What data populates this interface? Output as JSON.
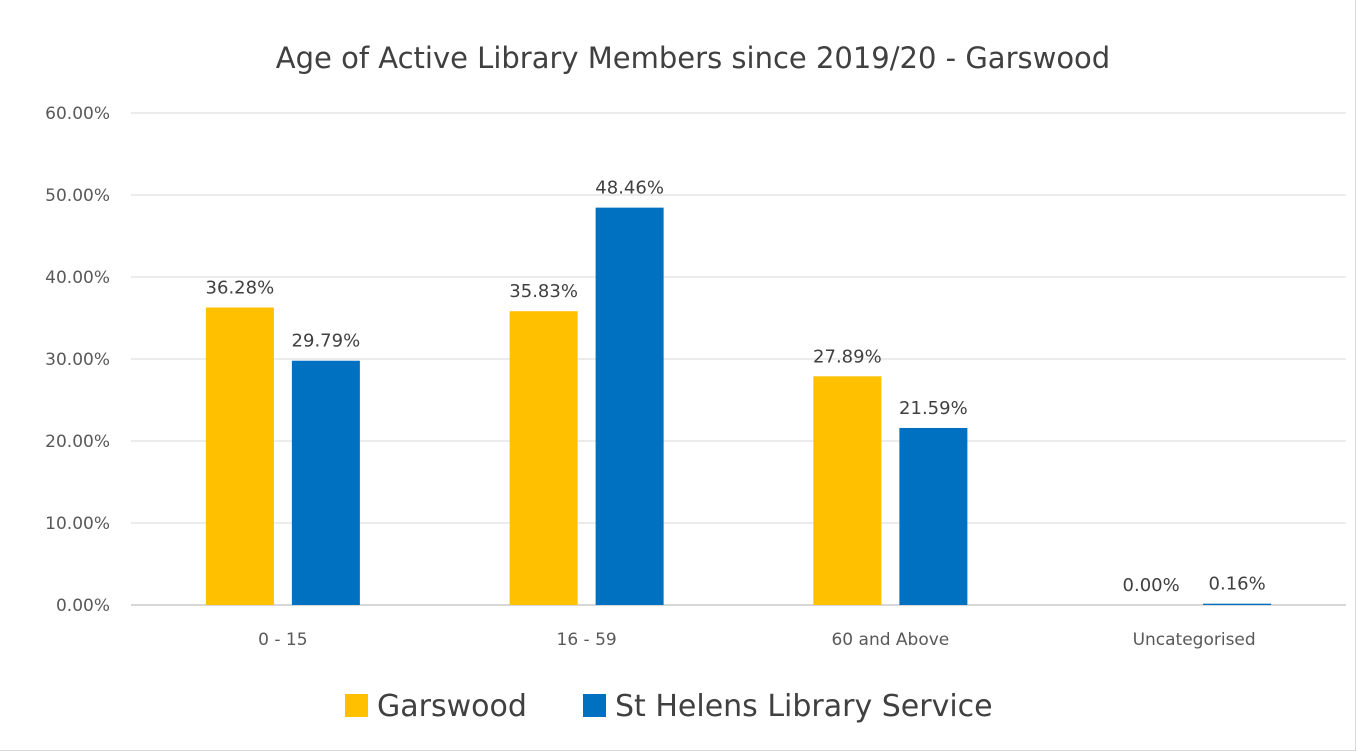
{
  "chart_data": {
    "type": "bar",
    "title": "Age of Active Library Members since 2019/20 - Garswood",
    "xlabel": "",
    "ylabel": "",
    "categories": [
      "0 - 15",
      "16 - 59",
      "60 and Above",
      "Uncategorised"
    ],
    "series": [
      {
        "name": "Garswood",
        "color": "#FFC000",
        "values": [
          36.28,
          35.83,
          27.89,
          0.0
        ],
        "labels": [
          "36.28%",
          "35.83%",
          "27.89%",
          "0.00%"
        ]
      },
      {
        "name": "St Helens Library Service",
        "color": "#0070C0",
        "values": [
          29.79,
          48.46,
          21.59,
          0.16
        ],
        "labels": [
          "29.79%",
          "48.46%",
          "21.59%",
          "0.16%"
        ]
      }
    ],
    "ylim": [
      0,
      60
    ],
    "yticks": [
      0,
      10,
      20,
      30,
      40,
      50,
      60
    ],
    "ytick_labels": [
      "0.00%",
      "10.00%",
      "20.00%",
      "30.00%",
      "40.00%",
      "50.00%",
      "60.00%"
    ],
    "grid": true,
    "gridline_color": "#d9d9d9",
    "legend_position": "bottom"
  }
}
